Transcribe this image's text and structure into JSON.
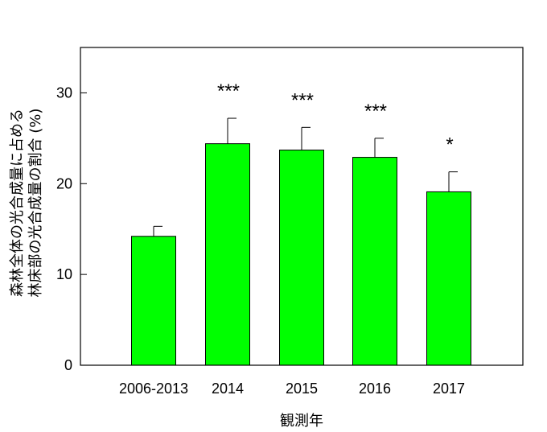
{
  "chart_data": {
    "type": "bar",
    "categories": [
      "2006-2013",
      "2014",
      "2015",
      "2016",
      "2017"
    ],
    "values": [
      14.2,
      24.4,
      23.7,
      22.9,
      19.1
    ],
    "error_upper": [
      1.1,
      2.8,
      2.5,
      2.1,
      2.2
    ],
    "significance": [
      "",
      "***",
      "***",
      "***",
      "*"
    ],
    "xlabel": "観測年",
    "ylabel_lines": [
      "森林全体の光合成量に占める",
      "林床部の光合成量の割合 (%)"
    ],
    "ylim": [
      0,
      35
    ],
    "yticks": [
      0,
      10,
      20,
      30
    ],
    "bar_color": "#00ff00",
    "edge_color": "#000000",
    "grid": false
  }
}
